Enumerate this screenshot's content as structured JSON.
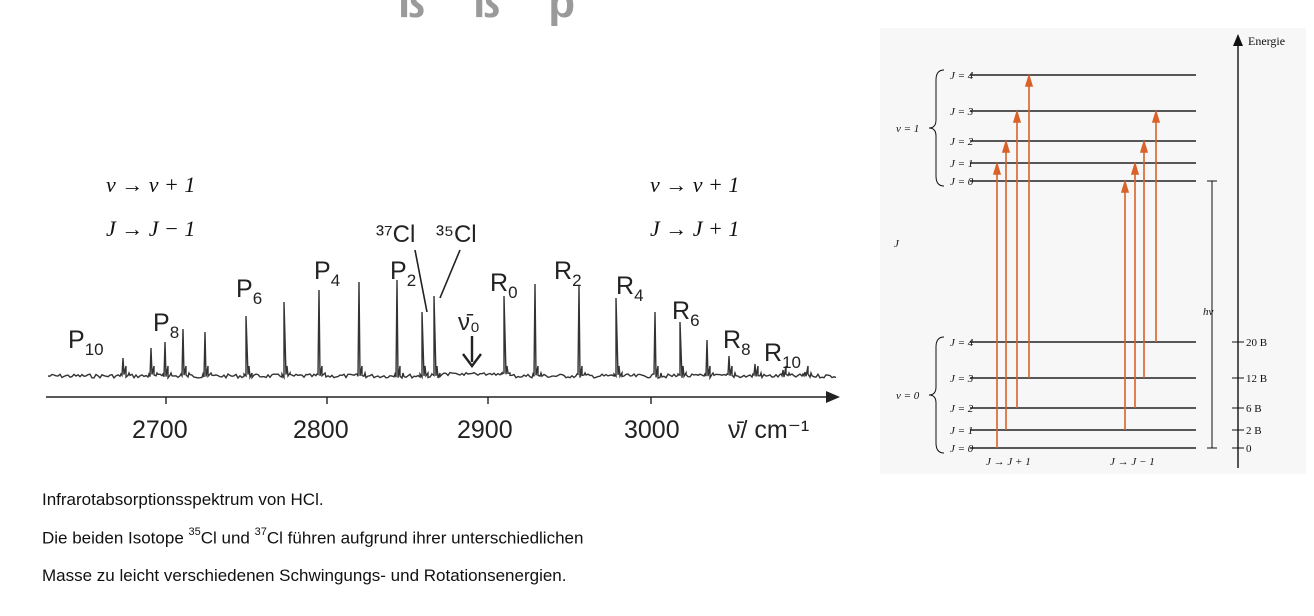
{
  "header": {
    "title_fragment": "ß ß p"
  },
  "spectrum": {
    "left_rule": {
      "line1": "ν → ν + 1",
      "line2": "J → J − 1"
    },
    "right_rule": {
      "line1": "ν → ν + 1",
      "line2": "J → J + 1"
    },
    "isotope_labels": {
      "cl37": "³⁷Cl",
      "cl35": "³⁵Cl"
    },
    "nu0_label": "ν̄₀",
    "branch_labels": [
      {
        "base": "P",
        "sub": "10"
      },
      {
        "base": "P",
        "sub": "8"
      },
      {
        "base": "P",
        "sub": "6"
      },
      {
        "base": "P",
        "sub": "4"
      },
      {
        "base": "P",
        "sub": "2"
      },
      {
        "base": "R",
        "sub": "0"
      },
      {
        "base": "R",
        "sub": "2"
      },
      {
        "base": "R",
        "sub": "4"
      },
      {
        "base": "R",
        "sub": "6"
      },
      {
        "base": "R",
        "sub": "8"
      },
      {
        "base": "R",
        "sub": "10"
      }
    ],
    "axis": {
      "ticks": [
        "2700",
        "2800",
        "2900",
        "3000"
      ],
      "unit_label": "ν̄/ cm⁻¹"
    }
  },
  "energy_diagram": {
    "axis_label": "Energie",
    "j_axis_label": "J",
    "upper_group_label": "v = 1",
    "lower_group_label": "v = 0",
    "upper_levels": [
      "J = 4",
      "J = 3",
      "J = 2",
      "J = 1",
      "J = 0"
    ],
    "lower_levels": [
      "J = 4",
      "J = 3",
      "J = 2",
      "J = 1",
      "J = 0"
    ],
    "hv_label": "hv",
    "energy_ticks": [
      "20 B",
      "12 B",
      "6 B",
      "2 B",
      "0"
    ],
    "bottom_labels": {
      "left": "J → J + 1",
      "right": "J → J − 1"
    },
    "colors": {
      "arrow": "#d9622b",
      "level": "#222222"
    }
  },
  "caption": {
    "line1": "Infrarotabsorptionsspektrum von HCl.",
    "line2_a": "Die beiden Isotope ",
    "iso35_mass": "35",
    "iso35_sym": "Cl und ",
    "iso37_mass": "37",
    "line2_b": "Cl führen aufgrund ihrer unterschiedlichen",
    "line3": "Masse zu leicht verschiedenen Schwingungs- und Rotationsenergien."
  }
}
